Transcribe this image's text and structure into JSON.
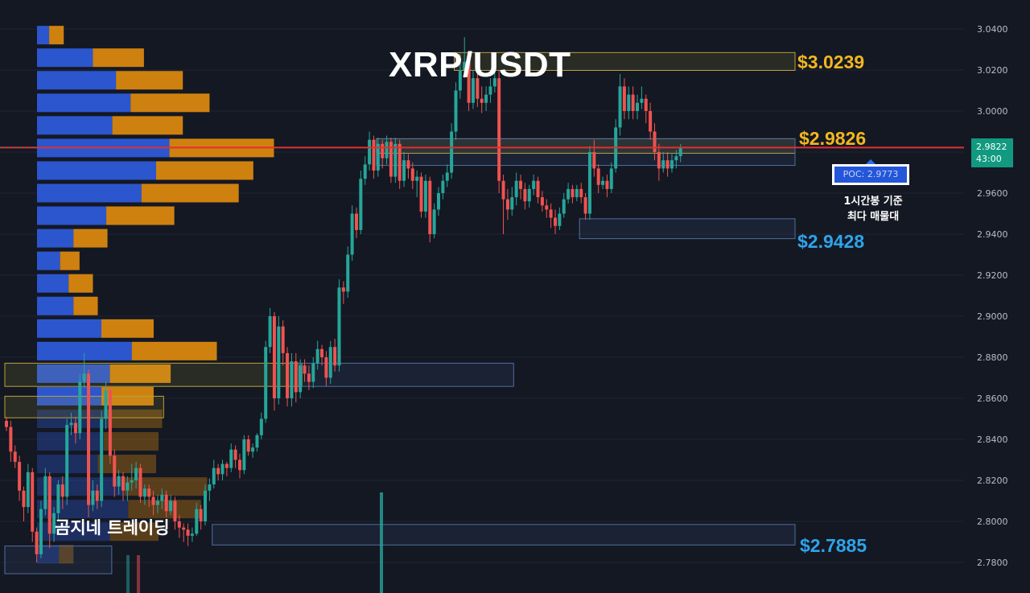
{
  "title": "XRP/USDT",
  "watermark": "곰지네 트레이딩",
  "levels": [
    {
      "label": "$3.0239",
      "price": 3.0239,
      "color": "#f2b71f"
    },
    {
      "label": "$2.9826",
      "price": 2.9826,
      "color": "#f2b71f"
    },
    {
      "label": "$2.9428",
      "price": 2.9428,
      "color": "#2ea4ea"
    },
    {
      "label": "$2.7885",
      "price": 2.7885,
      "color": "#2ea4ea"
    }
  ],
  "poc": {
    "label": "POC: 2.9773",
    "price": 2.9773,
    "note_line1": "1시간봉 기준",
    "note_line2": "최다 매물대"
  },
  "current_price": {
    "price_text": "2.9822",
    "countdown_text": "43:00",
    "price": 2.9822
  },
  "colors": {
    "up": "#26a69a",
    "down": "#ef5350",
    "buy_volume": "#2d5ad8",
    "sell_volume": "#d9870f",
    "poc_line": "#e03030",
    "background": "#141823"
  },
  "chart_data": {
    "type": "candlestick",
    "title": "XRP/USDT",
    "timeframe": "1h",
    "y_axis": {
      "ticks": [
        3.04,
        3.02,
        3.0,
        2.98,
        2.96,
        2.94,
        2.92,
        2.9,
        2.88,
        2.86,
        2.84,
        2.82,
        2.8,
        2.78
      ],
      "tick_labels": [
        "3.0400",
        "3.0200",
        "3.0000",
        "2.9800",
        "2.9600",
        "2.9400",
        "2.9200",
        "2.9000",
        "2.8800",
        "2.8600",
        "2.8400",
        "2.8200",
        "2.8000",
        "2.7800"
      ],
      "range": [
        2.774,
        3.044
      ]
    },
    "candles": [
      [
        2.849,
        2.846,
        2.851,
        2.844
      ],
      [
        2.846,
        2.834,
        2.849,
        2.829
      ],
      [
        2.834,
        2.829,
        2.837,
        2.826
      ],
      [
        2.829,
        2.815,
        2.832,
        2.81
      ],
      [
        2.815,
        2.807,
        2.817,
        2.8
      ],
      [
        2.807,
        2.824,
        2.828,
        2.804
      ],
      [
        2.824,
        2.795,
        2.826,
        2.79
      ],
      [
        2.795,
        2.784,
        2.797,
        2.78
      ],
      [
        2.784,
        2.806,
        2.81,
        2.782
      ],
      [
        2.806,
        2.822,
        2.826,
        2.803
      ],
      [
        2.822,
        2.794,
        2.824,
        2.787
      ],
      [
        2.794,
        2.804,
        2.807,
        2.79
      ],
      [
        2.804,
        2.818,
        2.82,
        2.8
      ],
      [
        2.818,
        2.812,
        2.822,
        2.806
      ],
      [
        2.812,
        2.847,
        2.85,
        2.808
      ],
      [
        2.847,
        2.848,
        2.853,
        2.842
      ],
      [
        2.848,
        2.843,
        2.851,
        2.838
      ],
      [
        2.843,
        2.868,
        2.872,
        2.84
      ],
      [
        2.868,
        2.872,
        2.882,
        2.865
      ],
      [
        2.872,
        2.808,
        2.874,
        2.802
      ],
      [
        2.808,
        2.815,
        2.82,
        2.805
      ],
      [
        2.815,
        2.81,
        2.818,
        2.806
      ],
      [
        2.81,
        2.85,
        2.854,
        2.807
      ],
      [
        2.85,
        2.864,
        2.868,
        2.845
      ],
      [
        2.864,
        2.832,
        2.866,
        2.828
      ],
      [
        2.832,
        2.817,
        2.835,
        2.812
      ],
      [
        2.817,
        2.822,
        2.825,
        2.813
      ],
      [
        2.822,
        2.815,
        2.824,
        2.81
      ],
      [
        2.815,
        2.819,
        2.822,
        2.81
      ],
      [
        2.819,
        2.82,
        2.828,
        2.815
      ],
      [
        2.82,
        2.826,
        2.829,
        2.816
      ],
      [
        2.826,
        2.812,
        2.828,
        2.809
      ],
      [
        2.812,
        2.816,
        2.818,
        2.808
      ],
      [
        2.816,
        2.812,
        2.818,
        2.807
      ],
      [
        2.812,
        2.808,
        2.815,
        2.803
      ],
      [
        2.808,
        2.81,
        2.813,
        2.804
      ],
      [
        2.81,
        2.813,
        2.816,
        2.806
      ],
      [
        2.813,
        2.805,
        2.815,
        2.802
      ],
      [
        2.805,
        2.81,
        2.813,
        2.803
      ],
      [
        2.81,
        2.8,
        2.812,
        2.796
      ],
      [
        2.8,
        2.797,
        2.803,
        2.792
      ],
      [
        2.797,
        2.796,
        2.799,
        2.79
      ],
      [
        2.796,
        2.793,
        2.799,
        2.788
      ],
      [
        2.793,
        2.794,
        2.797,
        2.79
      ],
      [
        2.794,
        2.806,
        2.809,
        2.793
      ],
      [
        2.806,
        2.8,
        2.808,
        2.796
      ],
      [
        2.8,
        2.815,
        2.818,
        2.798
      ],
      [
        2.815,
        2.818,
        2.821,
        2.81
      ],
      [
        2.818,
        2.826,
        2.83,
        2.816
      ],
      [
        2.826,
        2.823,
        2.828,
        2.82
      ],
      [
        2.823,
        2.828,
        2.83,
        2.82
      ],
      [
        2.828,
        2.826,
        2.829,
        2.822
      ],
      [
        2.826,
        2.835,
        2.838,
        2.824
      ],
      [
        2.835,
        2.83,
        2.837,
        2.826
      ],
      [
        2.83,
        2.825,
        2.833,
        2.821
      ],
      [
        2.825,
        2.84,
        2.842,
        2.823
      ],
      [
        2.84,
        2.834,
        2.842,
        2.832
      ],
      [
        2.834,
        2.836,
        2.838,
        2.831
      ],
      [
        2.836,
        2.842,
        2.843,
        2.834
      ],
      [
        2.842,
        2.85,
        2.853,
        2.84
      ],
      [
        2.85,
        2.885,
        2.888,
        2.848
      ],
      [
        2.885,
        2.9,
        2.904,
        2.882
      ],
      [
        2.9,
        2.86,
        2.902,
        2.854
      ],
      [
        2.86,
        2.895,
        2.9,
        2.857
      ],
      [
        2.895,
        2.882,
        2.898,
        2.876
      ],
      [
        2.882,
        2.86,
        2.885,
        2.856
      ],
      [
        2.86,
        2.878,
        2.882,
        2.856
      ],
      [
        2.878,
        2.863,
        2.882,
        2.858
      ],
      [
        2.863,
        2.876,
        2.879,
        2.86
      ],
      [
        2.876,
        2.872,
        2.879,
        2.868
      ],
      [
        2.872,
        2.868,
        2.876,
        2.864
      ],
      [
        2.868,
        2.877,
        2.88,
        2.865
      ],
      [
        2.877,
        2.884,
        2.888,
        2.874
      ],
      [
        2.884,
        2.88,
        2.886,
        2.876
      ],
      [
        2.88,
        2.87,
        2.883,
        2.866
      ],
      [
        2.87,
        2.885,
        2.888,
        2.867
      ],
      [
        2.885,
        2.876,
        2.889,
        2.873
      ],
      [
        2.876,
        2.914,
        2.918,
        2.873
      ],
      [
        2.914,
        2.912,
        2.917,
        2.906
      ],
      [
        2.912,
        2.93,
        2.934,
        2.909
      ],
      [
        2.93,
        2.95,
        2.954,
        2.927
      ],
      [
        2.95,
        2.942,
        2.953,
        2.938
      ],
      [
        2.942,
        2.967,
        2.971,
        2.94
      ],
      [
        2.967,
        2.974,
        2.978,
        2.964
      ],
      [
        2.974,
        2.986,
        2.99,
        2.971
      ],
      [
        2.986,
        2.971,
        2.988,
        2.967
      ],
      [
        2.971,
        2.984,
        2.987,
        2.968
      ],
      [
        2.984,
        2.977,
        2.986,
        2.972
      ],
      [
        2.977,
        2.985,
        2.988,
        2.974
      ],
      [
        2.985,
        2.968,
        2.987,
        2.965
      ],
      [
        2.968,
        2.984,
        2.987,
        2.965
      ],
      [
        2.984,
        2.966,
        2.986,
        2.962
      ],
      [
        2.966,
        2.976,
        2.98,
        2.963
      ],
      [
        2.976,
        2.972,
        2.979,
        2.967
      ],
      [
        2.972,
        2.966,
        2.975,
        2.962
      ],
      [
        2.966,
        2.968,
        2.971,
        2.958
      ],
      [
        2.968,
        2.951,
        2.97,
        2.948
      ],
      [
        2.951,
        2.966,
        2.969,
        2.948
      ],
      [
        2.966,
        2.94,
        2.968,
        2.936
      ],
      [
        2.94,
        2.952,
        2.955,
        2.938
      ],
      [
        2.952,
        2.96,
        2.963,
        2.949
      ],
      [
        2.96,
        2.966,
        2.969,
        2.957
      ],
      [
        2.966,
        2.97,
        2.974,
        2.963
      ],
      [
        2.97,
        2.99,
        2.994,
        2.967
      ],
      [
        2.99,
        3.01,
        3.014,
        2.986
      ],
      [
        3.01,
        3.02,
        3.028,
        3.006
      ],
      [
        3.02,
        3.024,
        3.036,
        3.016
      ],
      [
        3.024,
        3.004,
        3.026,
        3.0
      ],
      [
        3.004,
        3.016,
        3.02,
        3.001
      ],
      [
        3.016,
        3.006,
        3.02,
        3.002
      ],
      [
        3.006,
        3.004,
        3.012,
        2.999
      ],
      [
        3.004,
        3.008,
        3.012,
        3.0
      ],
      [
        3.008,
        3.012,
        3.016,
        3.004
      ],
      [
        3.012,
        3.016,
        3.02,
        3.009
      ],
      [
        3.016,
        2.966,
        3.02,
        2.96
      ],
      [
        2.966,
        2.957,
        2.969,
        2.94
      ],
      [
        2.957,
        2.952,
        2.962,
        2.947
      ],
      [
        2.952,
        2.958,
        2.963,
        2.949
      ],
      [
        2.958,
        2.966,
        2.97,
        2.954
      ],
      [
        2.966,
        2.962,
        2.969,
        2.957
      ],
      [
        2.962,
        2.956,
        2.965,
        2.952
      ],
      [
        2.956,
        2.962,
        2.964,
        2.953
      ],
      [
        2.962,
        2.966,
        2.969,
        2.959
      ],
      [
        2.966,
        2.958,
        2.968,
        2.955
      ],
      [
        2.958,
        2.954,
        2.961,
        2.951
      ],
      [
        2.954,
        2.952,
        2.957,
        2.948
      ],
      [
        2.952,
        2.948,
        2.955,
        2.943
      ],
      [
        2.948,
        2.944,
        2.952,
        2.94
      ],
      [
        2.944,
        2.95,
        2.953,
        2.942
      ],
      [
        2.95,
        2.957,
        2.96,
        2.948
      ],
      [
        2.957,
        2.962,
        2.965,
        2.955
      ],
      [
        2.962,
        2.958,
        2.964,
        2.955
      ],
      [
        2.958,
        2.962,
        2.964,
        2.956
      ],
      [
        2.962,
        2.958,
        2.965,
        2.955
      ],
      [
        2.958,
        2.95,
        2.96,
        2.947
      ],
      [
        2.95,
        2.98,
        2.983,
        2.947
      ],
      [
        2.98,
        2.972,
        2.986,
        2.968
      ],
      [
        2.972,
        2.964,
        2.974,
        2.96
      ],
      [
        2.964,
        2.966,
        2.968,
        2.962
      ],
      [
        2.966,
        2.962,
        2.969,
        2.958
      ],
      [
        2.962,
        2.972,
        2.975,
        2.96
      ],
      [
        2.972,
        2.992,
        2.996,
        2.97
      ],
      [
        2.992,
        3.012,
        3.018,
        2.988
      ],
      [
        3.012,
        3.0,
        3.016,
        2.996
      ],
      [
        3.0,
        3.008,
        3.012,
        2.996
      ],
      [
        3.008,
        3.0,
        3.012,
        2.996
      ],
      [
        3.0,
        3.004,
        3.008,
        2.996
      ],
      [
        3.004,
        3.006,
        3.012,
        3.001
      ],
      [
        3.006,
        3.0,
        3.008,
        2.994
      ],
      [
        3.0,
        2.99,
        3.004,
        2.986
      ],
      [
        2.99,
        2.98,
        2.994,
        2.976
      ],
      [
        2.98,
        2.972,
        2.984,
        2.966
      ],
      [
        2.972,
        2.976,
        2.98,
        2.97
      ],
      [
        2.976,
        2.972,
        2.98,
        2.968
      ],
      [
        2.972,
        2.976,
        2.979,
        2.97
      ],
      [
        2.976,
        2.978,
        2.981,
        2.972
      ],
      [
        2.978,
        2.9822,
        2.984,
        2.975
      ]
    ],
    "volume_profile": {
      "bins": [
        {
          "price": 3.037,
          "buy": 1.0,
          "sell": 1.2
        },
        {
          "price": 3.026,
          "buy": 4.6,
          "sell": 4.2
        },
        {
          "price": 3.015,
          "buy": 6.5,
          "sell": 5.5
        },
        {
          "price": 3.004,
          "buy": 7.7,
          "sell": 6.5
        },
        {
          "price": 2.993,
          "buy": 6.2,
          "sell": 5.8
        },
        {
          "price": 2.982,
          "buy": 10.9,
          "sell": 8.6
        },
        {
          "price": 2.971,
          "buy": 9.8,
          "sell": 8.0
        },
        {
          "price": 2.96,
          "buy": 8.6,
          "sell": 8.0
        },
        {
          "price": 2.949,
          "buy": 5.7,
          "sell": 5.6
        },
        {
          "price": 2.938,
          "buy": 3.0,
          "sell": 2.8
        },
        {
          "price": 2.927,
          "buy": 1.9,
          "sell": 1.6
        },
        {
          "price": 2.916,
          "buy": 2.6,
          "sell": 2.0
        },
        {
          "price": 2.905,
          "buy": 3.0,
          "sell": 2.0
        },
        {
          "price": 2.894,
          "buy": 5.3,
          "sell": 4.3
        },
        {
          "price": 2.883,
          "buy": 7.8,
          "sell": 7.0
        },
        {
          "price": 2.872,
          "buy": 6.0,
          "sell": 5.0
        },
        {
          "price": 2.861,
          "buy": 5.3,
          "sell": 4.3
        },
        {
          "price": 2.85,
          "buy": 5.8,
          "sell": 4.5
        },
        {
          "price": 2.839,
          "buy": 5.5,
          "sell": 4.5
        },
        {
          "price": 2.828,
          "buy": 5.0,
          "sell": 4.8
        },
        {
          "price": 2.817,
          "buy": 7.2,
          "sell": 6.8
        },
        {
          "price": 2.806,
          "buy": 7.5,
          "sell": 6.0
        },
        {
          "price": 2.795,
          "buy": 6.0,
          "sell": 4.0
        },
        {
          "price": 2.784,
          "buy": 1.8,
          "sell": 1.2
        }
      ]
    },
    "zones": [
      {
        "color": "yellow",
        "from_candle": 104,
        "price_low": 3.0198,
        "price_high": 3.0285,
        "extends_to_axis": true
      },
      {
        "color": "yellow",
        "from_candle": 86,
        "price_low": 2.9794,
        "price_high": 2.9865,
        "extends_to_axis": true
      },
      {
        "color": "blue",
        "from_candle": 86,
        "price_low": 2.9735,
        "price_high": 2.9865,
        "extends_to_axis": true
      },
      {
        "color": "blue",
        "from_candle": 133,
        "price_low": 2.9378,
        "price_high": 2.9475,
        "extends_to_axis": true
      },
      {
        "color": "yellow",
        "from_candle": 0,
        "price_low": 2.8658,
        "price_high": 2.8771,
        "to_candle": 68
      },
      {
        "color": "blue",
        "from_candle": 68,
        "price_low": 2.8658,
        "price_high": 2.8771,
        "to_candle": 117
      },
      {
        "color": "yellow",
        "from_candle": 0,
        "price_low": 2.8505,
        "price_high": 2.861,
        "to_candle": 36
      },
      {
        "color": "blue",
        "from_candle": 48,
        "price_low": 2.7885,
        "price_high": 2.7985,
        "extends_to_axis": true
      },
      {
        "color": "blue",
        "from_candle": 0,
        "price_low": 2.7745,
        "price_high": 2.788,
        "to_candle": 24
      }
    ]
  }
}
